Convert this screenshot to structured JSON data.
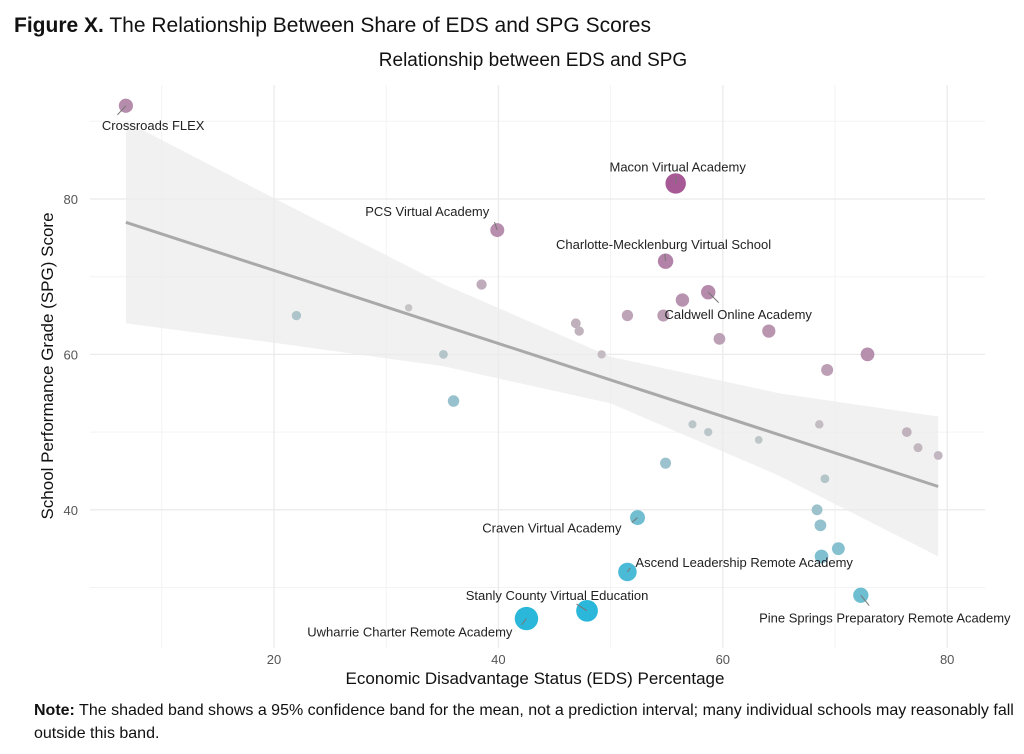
{
  "figure": {
    "label": "Figure X.",
    "title": "The Relationship Between Share of EDS and SPG Scores"
  },
  "note": {
    "label": "Note:",
    "text": "The shaded band shows a 95% confidence band for the mean, not a prediction interval; many individual schools may reasonably fall outside this band."
  },
  "chart_data": {
    "type": "scatter",
    "title": "Relationship between EDS and SPG",
    "xlabel": "Economic Disadvantage Status (EDS) Percentage",
    "ylabel": "School Performance Grade (SPG) Score",
    "xlim": [
      3,
      83
    ],
    "ylim": [
      21.5,
      94
    ],
    "xticks": [
      20,
      40,
      60,
      80
    ],
    "xticks_minor": [
      10,
      30,
      50,
      70
    ],
    "yticks": [
      40,
      60,
      80
    ],
    "yticks_minor": [
      30,
      50,
      70,
      90
    ],
    "grid": true,
    "colors": {
      "high": "#a0488c",
      "neutral": "#c4c4c4",
      "low": "#1fb3d8",
      "trend": "#a9a9a9",
      "band": "#ebebeb"
    },
    "trend_line": {
      "x": [
        6.8,
        79.2
      ],
      "y": [
        77,
        43
      ]
    },
    "confidence_band": [
      [
        6.8,
        64,
        90
      ],
      [
        20,
        61.5,
        80.1
      ],
      [
        35,
        58.5,
        69.1
      ],
      [
        50,
        53.7,
        59.7
      ],
      [
        65,
        44.4,
        55
      ],
      [
        79.2,
        34,
        52
      ]
    ],
    "points": [
      {
        "x": 6.8,
        "y": 92,
        "label": "Crossroads FLEX"
      },
      {
        "x": 55.8,
        "y": 82,
        "label": "Macon Virtual Academy"
      },
      {
        "x": 39.9,
        "y": 76,
        "label": "PCS Virtual Academy"
      },
      {
        "x": 54.9,
        "y": 72,
        "label": "Charlotte-Mecklenburg Virtual School"
      },
      {
        "x": 58.7,
        "y": 68,
        "label": "Caldwell Online Academy"
      },
      {
        "x": 56.4,
        "y": 67
      },
      {
        "x": 54.7,
        "y": 65
      },
      {
        "x": 51.5,
        "y": 65
      },
      {
        "x": 64.1,
        "y": 63
      },
      {
        "x": 59.7,
        "y": 62
      },
      {
        "x": 69.3,
        "y": 58
      },
      {
        "x": 72.9,
        "y": 60
      },
      {
        "x": 38.5,
        "y": 69
      },
      {
        "x": 32.0,
        "y": 66
      },
      {
        "x": 22.0,
        "y": 65
      },
      {
        "x": 35.1,
        "y": 60
      },
      {
        "x": 36.0,
        "y": 54
      },
      {
        "x": 46.9,
        "y": 64
      },
      {
        "x": 47.2,
        "y": 63
      },
      {
        "x": 49.2,
        "y": 60
      },
      {
        "x": 54.9,
        "y": 46
      },
      {
        "x": 57.3,
        "y": 51
      },
      {
        "x": 58.7,
        "y": 50
      },
      {
        "x": 63.2,
        "y": 49
      },
      {
        "x": 68.6,
        "y": 51
      },
      {
        "x": 69.1,
        "y": 44
      },
      {
        "x": 76.4,
        "y": 50
      },
      {
        "x": 77.4,
        "y": 48
      },
      {
        "x": 79.2,
        "y": 47
      },
      {
        "x": 52.4,
        "y": 39,
        "label": "Craven Virtual Academy"
      },
      {
        "x": 68.4,
        "y": 40
      },
      {
        "x": 68.7,
        "y": 38
      },
      {
        "x": 70.3,
        "y": 35
      },
      {
        "x": 68.8,
        "y": 34
      },
      {
        "x": 51.5,
        "y": 32,
        "label": "Ascend Leadership Remote Academy"
      },
      {
        "x": 72.3,
        "y": 29,
        "label": "Pine Springs Preparatory Remote Academy"
      },
      {
        "x": 47.9,
        "y": 27,
        "label": "Stanly County Virtual Education"
      },
      {
        "x": 42.5,
        "y": 26,
        "label": "Uwharrie Charter Remote Academy"
      }
    ]
  }
}
